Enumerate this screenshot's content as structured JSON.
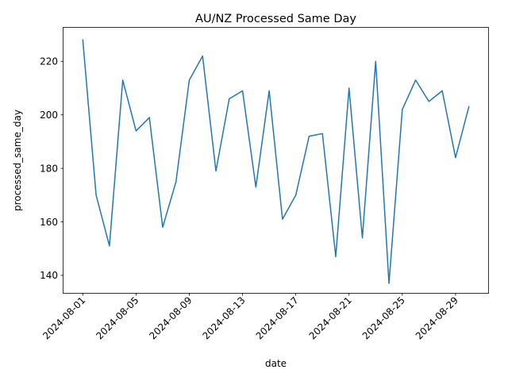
{
  "chart_data": {
    "type": "line",
    "title": "AU/NZ Processed Same Day",
    "xlabel": "date",
    "ylabel": "processed_same_day",
    "x": [
      "2024-08-01",
      "2024-08-02",
      "2024-08-03",
      "2024-08-04",
      "2024-08-05",
      "2024-08-06",
      "2024-08-07",
      "2024-08-08",
      "2024-08-09",
      "2024-08-10",
      "2024-08-11",
      "2024-08-12",
      "2024-08-13",
      "2024-08-14",
      "2024-08-15",
      "2024-08-16",
      "2024-08-17",
      "2024-08-18",
      "2024-08-19",
      "2024-08-20",
      "2024-08-21",
      "2024-08-22",
      "2024-08-23",
      "2024-08-24",
      "2024-08-25",
      "2024-08-26",
      "2024-08-27",
      "2024-08-28",
      "2024-08-29",
      "2024-08-30"
    ],
    "series": [
      {
        "values": [
          228,
          170,
          151,
          213,
          194,
          199,
          158,
          175,
          213,
          222,
          179,
          206,
          209,
          173,
          209,
          161,
          170,
          192,
          193,
          147,
          210,
          154,
          220,
          137,
          202,
          213,
          205,
          209,
          184,
          203
        ],
        "color": "#1f77b4"
      }
    ],
    "xticks": [
      "2024-08-01",
      "2024-08-05",
      "2024-08-09",
      "2024-08-13",
      "2024-08-17",
      "2024-08-21",
      "2024-08-25",
      "2024-08-29"
    ],
    "yticks": [
      140,
      160,
      180,
      200,
      220
    ],
    "ylim": [
      133.45,
      232.55
    ],
    "grid": false,
    "legend": "none"
  }
}
